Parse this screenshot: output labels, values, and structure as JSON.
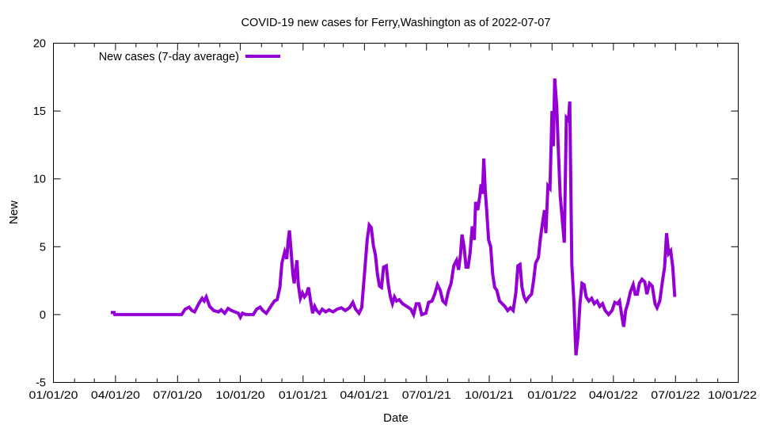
{
  "chart_data": {
    "type": "line",
    "title": "COVID-19 new cases for Ferry,Washington as of 2022-07-07",
    "xlabel": "Date",
    "ylabel": "New",
    "xlim": [
      "2020-01-01",
      "2022-10-01"
    ],
    "ylim": [
      -5,
      20
    ],
    "yticks": [
      "-5",
      "0",
      "5",
      "10",
      "15",
      "20"
    ],
    "xticks": [
      "01/01/20",
      "04/01/20",
      "07/01/20",
      "10/01/20",
      "01/01/21",
      "04/01/21",
      "07/01/21",
      "10/01/21",
      "01/01/22",
      "04/01/22",
      "07/01/22",
      "10/01/22"
    ],
    "grid": false,
    "legend_position": "top-left",
    "series": [
      {
        "name": "New cases (7-day average)",
        "color": "#9400d3",
        "points": [
          [
            "2020-03-25",
            0.15
          ],
          [
            "2020-03-30",
            0.15
          ],
          [
            "2020-03-31",
            0.0
          ],
          [
            "2020-07-07",
            0.0
          ],
          [
            "2020-07-12",
            0.4
          ],
          [
            "2020-07-18",
            0.55
          ],
          [
            "2020-07-22",
            0.3
          ],
          [
            "2020-07-26",
            0.2
          ],
          [
            "2020-08-01",
            0.8
          ],
          [
            "2020-08-06",
            1.2
          ],
          [
            "2020-08-09",
            1.0
          ],
          [
            "2020-08-12",
            1.3
          ],
          [
            "2020-08-17",
            0.6
          ],
          [
            "2020-08-23",
            0.3
          ],
          [
            "2020-08-30",
            0.2
          ],
          [
            "2020-09-03",
            0.35
          ],
          [
            "2020-09-08",
            0.1
          ],
          [
            "2020-09-13",
            0.45
          ],
          [
            "2020-09-18",
            0.3
          ],
          [
            "2020-09-23",
            0.2
          ],
          [
            "2020-09-28",
            0.1
          ],
          [
            "2020-10-01",
            -0.2
          ],
          [
            "2020-10-04",
            0.1
          ],
          [
            "2020-10-09",
            0.0
          ],
          [
            "2020-10-20",
            0.0
          ],
          [
            "2020-10-25",
            0.4
          ],
          [
            "2020-10-30",
            0.55
          ],
          [
            "2020-11-03",
            0.3
          ],
          [
            "2020-11-08",
            0.1
          ],
          [
            "2020-11-12",
            0.4
          ],
          [
            "2020-11-16",
            0.7
          ],
          [
            "2020-11-20",
            1.0
          ],
          [
            "2020-11-24",
            1.1
          ],
          [
            "2020-11-28",
            2.0
          ],
          [
            "2020-12-01",
            3.8
          ],
          [
            "2020-12-05",
            4.6
          ],
          [
            "2020-12-08",
            4.1
          ],
          [
            "2020-12-10",
            5.4
          ],
          [
            "2020-12-12",
            6.2
          ],
          [
            "2020-12-14",
            5.0
          ],
          [
            "2020-12-17",
            3.0
          ],
          [
            "2020-12-19",
            2.3
          ],
          [
            "2020-12-21",
            3.2
          ],
          [
            "2020-12-23",
            4.0
          ],
          [
            "2020-12-25",
            2.2
          ],
          [
            "2020-12-28",
            1.2
          ],
          [
            "2020-12-31",
            1.6
          ],
          [
            "2021-01-03",
            1.3
          ],
          [
            "2021-01-06",
            1.5
          ],
          [
            "2021-01-09",
            2.0
          ],
          [
            "2021-01-12",
            1.0
          ],
          [
            "2021-01-15",
            0.1
          ],
          [
            "2021-01-18",
            0.6
          ],
          [
            "2021-01-21",
            0.3
          ],
          [
            "2021-01-25",
            0.1
          ],
          [
            "2021-01-29",
            0.4
          ],
          [
            "2021-02-03",
            0.2
          ],
          [
            "2021-02-08",
            0.35
          ],
          [
            "2021-02-14",
            0.2
          ],
          [
            "2021-02-20",
            0.4
          ],
          [
            "2021-02-26",
            0.5
          ],
          [
            "2021-03-04",
            0.3
          ],
          [
            "2021-03-10",
            0.5
          ],
          [
            "2021-03-15",
            0.9
          ],
          [
            "2021-03-19",
            0.4
          ],
          [
            "2021-03-24",
            0.1
          ],
          [
            "2021-03-28",
            0.5
          ],
          [
            "2021-04-01",
            3.0
          ],
          [
            "2021-04-05",
            5.5
          ],
          [
            "2021-04-08",
            6.6
          ],
          [
            "2021-04-11",
            6.4
          ],
          [
            "2021-04-14",
            5.1
          ],
          [
            "2021-04-17",
            4.4
          ],
          [
            "2021-04-20",
            3.0
          ],
          [
            "2021-04-23",
            2.1
          ],
          [
            "2021-04-26",
            2.0
          ],
          [
            "2021-04-29",
            3.5
          ],
          [
            "2021-05-03",
            3.6
          ],
          [
            "2021-05-06",
            2.2
          ],
          [
            "2021-05-09",
            1.3
          ],
          [
            "2021-05-12",
            0.8
          ],
          [
            "2021-05-15",
            1.3
          ],
          [
            "2021-05-18",
            1.0
          ],
          [
            "2021-05-22",
            1.1
          ],
          [
            "2021-05-27",
            0.8
          ],
          [
            "2021-06-02",
            0.6
          ],
          [
            "2021-06-08",
            0.4
          ],
          [
            "2021-06-12",
            0.0
          ],
          [
            "2021-06-16",
            0.8
          ],
          [
            "2021-06-20",
            0.8
          ],
          [
            "2021-06-24",
            0.0
          ],
          [
            "2021-06-30",
            0.1
          ],
          [
            "2021-07-04",
            0.9
          ],
          [
            "2021-07-09",
            1.0
          ],
          [
            "2021-07-13",
            1.5
          ],
          [
            "2021-07-17",
            2.2
          ],
          [
            "2021-07-21",
            1.8
          ],
          [
            "2021-07-25",
            1.0
          ],
          [
            "2021-07-29",
            0.8
          ],
          [
            "2021-08-02",
            1.7
          ],
          [
            "2021-08-06",
            2.3
          ],
          [
            "2021-08-10",
            3.6
          ],
          [
            "2021-08-14",
            4.0
          ],
          [
            "2021-08-17",
            3.3
          ],
          [
            "2021-08-20",
            4.5
          ],
          [
            "2021-08-22",
            5.9
          ],
          [
            "2021-08-25",
            5.0
          ],
          [
            "2021-08-28",
            3.5
          ],
          [
            "2021-08-31",
            3.5
          ],
          [
            "2021-09-03",
            4.6
          ],
          [
            "2021-09-06",
            6.5
          ],
          [
            "2021-09-09",
            5.5
          ],
          [
            "2021-09-11",
            8.3
          ],
          [
            "2021-09-14",
            7.7
          ],
          [
            "2021-09-17",
            8.7
          ],
          [
            "2021-09-19",
            9.6
          ],
          [
            "2021-09-21",
            8.9
          ],
          [
            "2021-09-23",
            11.5
          ],
          [
            "2021-09-25",
            9.2
          ],
          [
            "2021-09-27",
            7.8
          ],
          [
            "2021-09-30",
            5.5
          ],
          [
            "2021-10-03",
            5.0
          ],
          [
            "2021-10-06",
            3.0
          ],
          [
            "2021-10-09",
            2.0
          ],
          [
            "2021-10-12",
            1.8
          ],
          [
            "2021-10-16",
            1.0
          ],
          [
            "2021-10-20",
            0.8
          ],
          [
            "2021-10-24",
            0.6
          ],
          [
            "2021-10-28",
            0.3
          ],
          [
            "2021-11-01",
            0.5
          ],
          [
            "2021-11-05",
            0.3
          ],
          [
            "2021-11-09",
            1.6
          ],
          [
            "2021-11-12",
            3.6
          ],
          [
            "2021-11-15",
            3.7
          ],
          [
            "2021-11-18",
            2.0
          ],
          [
            "2021-11-21",
            1.3
          ],
          [
            "2021-11-24",
            1.0
          ],
          [
            "2021-11-28",
            1.3
          ],
          [
            "2021-12-02",
            1.5
          ],
          [
            "2021-12-05",
            2.5
          ],
          [
            "2021-12-08",
            3.8
          ],
          [
            "2021-12-12",
            4.2
          ],
          [
            "2021-12-15",
            5.6
          ],
          [
            "2021-12-18",
            6.7
          ],
          [
            "2021-12-21",
            7.7
          ],
          [
            "2021-12-23",
            6.0
          ],
          [
            "2021-12-26",
            9.5
          ],
          [
            "2021-12-29",
            9.3
          ],
          [
            "2022-01-01",
            15.0
          ],
          [
            "2022-01-03",
            12.4
          ],
          [
            "2022-01-05",
            17.4
          ],
          [
            "2022-01-08",
            15.3
          ],
          [
            "2022-01-10",
            12.5
          ],
          [
            "2022-01-13",
            8.8
          ],
          [
            "2022-01-16",
            7.0
          ],
          [
            "2022-01-19",
            5.3
          ],
          [
            "2022-01-22",
            14.5
          ],
          [
            "2022-01-25",
            14.3
          ],
          [
            "2022-01-27",
            15.7
          ],
          [
            "2022-01-30",
            3.7
          ],
          [
            "2022-02-02",
            1.0
          ],
          [
            "2022-02-05",
            -3.0
          ],
          [
            "2022-02-08",
            -1.7
          ],
          [
            "2022-02-11",
            0.8
          ],
          [
            "2022-02-14",
            2.3
          ],
          [
            "2022-02-17",
            2.2
          ],
          [
            "2022-02-20",
            1.3
          ],
          [
            "2022-02-24",
            1.0
          ],
          [
            "2022-02-28",
            1.2
          ],
          [
            "2022-03-04",
            0.8
          ],
          [
            "2022-03-08",
            1.0
          ],
          [
            "2022-03-12",
            0.6
          ],
          [
            "2022-03-16",
            0.8
          ],
          [
            "2022-03-20",
            0.3
          ],
          [
            "2022-03-25",
            0.0
          ],
          [
            "2022-03-30",
            0.3
          ],
          [
            "2022-04-03",
            0.9
          ],
          [
            "2022-04-07",
            0.8
          ],
          [
            "2022-04-10",
            1.0
          ],
          [
            "2022-04-13",
            0.0
          ],
          [
            "2022-04-16",
            -0.9
          ],
          [
            "2022-04-19",
            0.3
          ],
          [
            "2022-04-22",
            0.8
          ],
          [
            "2022-04-26",
            1.7
          ],
          [
            "2022-04-30",
            2.2
          ],
          [
            "2022-05-03",
            1.5
          ],
          [
            "2022-05-06",
            1.5
          ],
          [
            "2022-05-09",
            2.3
          ],
          [
            "2022-05-13",
            2.6
          ],
          [
            "2022-05-17",
            2.4
          ],
          [
            "2022-05-20",
            1.5
          ],
          [
            "2022-05-24",
            2.3
          ],
          [
            "2022-05-28",
            2.1
          ],
          [
            "2022-06-01",
            0.8
          ],
          [
            "2022-06-04",
            0.5
          ],
          [
            "2022-06-08",
            1.0
          ],
          [
            "2022-06-12",
            2.5
          ],
          [
            "2022-06-15",
            3.5
          ],
          [
            "2022-06-18",
            6.0
          ],
          [
            "2022-06-21",
            4.5
          ],
          [
            "2022-06-24",
            4.7
          ],
          [
            "2022-06-27",
            3.5
          ],
          [
            "2022-06-30",
            1.3
          ]
        ]
      }
    ]
  }
}
